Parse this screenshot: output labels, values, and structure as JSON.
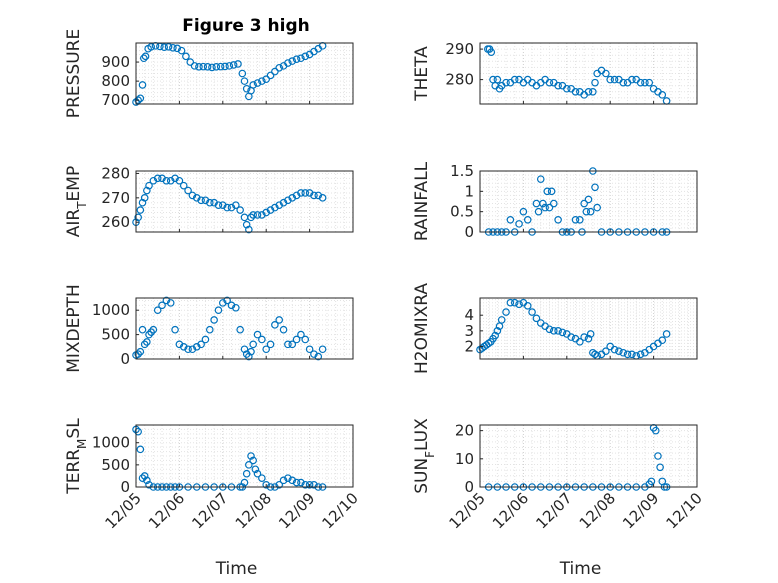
{
  "figure": {
    "title": "Figure 3 high",
    "marker_color": "#0072bd",
    "grid": "on (major dotted, minor dotted)",
    "xtick_labels": [
      "12/05",
      "12/06",
      "12/07",
      "12/08",
      "12/09",
      "12/10"
    ]
  },
  "chart_data": [
    {
      "type": "scatter",
      "ylabel": "PRESSURE",
      "xlabel": "",
      "title": "Figure 3 high",
      "xlim": [
        0,
        5
      ],
      "ylim": [
        680,
        1000
      ],
      "yticks": [
        700,
        800,
        900
      ],
      "x": [
        0.0,
        0.05,
        0.1,
        0.15,
        0.18,
        0.22,
        0.28,
        0.35,
        0.45,
        0.55,
        0.65,
        0.75,
        0.85,
        0.95,
        1.05,
        1.15,
        1.25,
        1.35,
        1.45,
        1.55,
        1.65,
        1.75,
        1.85,
        1.95,
        2.05,
        2.15,
        2.25,
        2.35,
        2.45,
        2.5,
        2.55,
        2.6,
        2.65,
        2.7,
        2.8,
        2.9,
        3.0,
        3.1,
        3.2,
        3.3,
        3.4,
        3.5,
        3.6,
        3.7,
        3.8,
        3.9,
        4.0,
        4.1,
        4.2,
        4.3
      ],
      "y": [
        690,
        700,
        710,
        780,
        920,
        930,
        970,
        980,
        985,
        982,
        978,
        980,
        975,
        972,
        960,
        930,
        900,
        880,
        875,
        876,
        875,
        872,
        875,
        876,
        877,
        880,
        885,
        890,
        840,
        800,
        760,
        720,
        750,
        780,
        790,
        800,
        810,
        830,
        850,
        870,
        880,
        895,
        905,
        915,
        920,
        930,
        940,
        955,
        970,
        985
      ]
    },
    {
      "type": "scatter",
      "ylabel": "THETA",
      "xlabel": "",
      "xlim": [
        0,
        5
      ],
      "ylim": [
        272,
        292
      ],
      "yticks": [
        280,
        290
      ],
      "x": [
        0.18,
        0.22,
        0.26,
        0.3,
        0.35,
        0.4,
        0.45,
        0.5,
        0.6,
        0.7,
        0.8,
        0.9,
        1.0,
        1.1,
        1.2,
        1.3,
        1.4,
        1.5,
        1.6,
        1.7,
        1.8,
        1.9,
        2.0,
        2.1,
        2.2,
        2.3,
        2.4,
        2.5,
        2.6,
        2.65,
        2.7,
        2.8,
        2.9,
        3.0,
        3.1,
        3.2,
        3.3,
        3.4,
        3.5,
        3.6,
        3.7,
        3.8,
        3.9,
        4.0,
        4.1,
        4.2,
        4.3
      ],
      "y": [
        290,
        290,
        289,
        280,
        278,
        280,
        277,
        278,
        279,
        279,
        280,
        280,
        279,
        280,
        279,
        278,
        279,
        280,
        279,
        279,
        278,
        278,
        277,
        277,
        276,
        276,
        275,
        276,
        276,
        279,
        282,
        283,
        282,
        280,
        280,
        280,
        279,
        279,
        280,
        280,
        279,
        279,
        279,
        277,
        276,
        275,
        273
      ]
    },
    {
      "type": "scatter",
      "ylabel": "AIR_TEMP",
      "xlabel": "",
      "xlim": [
        0,
        5
      ],
      "ylim": [
        256,
        281
      ],
      "yticks": [
        260,
        270,
        280
      ],
      "x": [
        0.0,
        0.05,
        0.1,
        0.15,
        0.2,
        0.25,
        0.3,
        0.4,
        0.5,
        0.6,
        0.7,
        0.8,
        0.9,
        1.0,
        1.1,
        1.2,
        1.3,
        1.4,
        1.5,
        1.6,
        1.7,
        1.8,
        1.9,
        2.0,
        2.1,
        2.2,
        2.3,
        2.4,
        2.5,
        2.55,
        2.6,
        2.65,
        2.7,
        2.8,
        2.9,
        3.0,
        3.1,
        3.2,
        3.3,
        3.4,
        3.5,
        3.6,
        3.7,
        3.8,
        3.9,
        4.0,
        4.1,
        4.2,
        4.3
      ],
      "y": [
        260,
        262,
        265,
        268,
        270,
        273,
        275,
        277,
        278,
        278,
        277,
        277,
        278,
        277,
        275,
        273,
        271,
        270,
        269,
        269,
        268,
        268,
        267,
        267,
        266,
        266,
        267,
        265,
        262,
        259,
        257,
        262,
        263,
        263,
        263,
        264,
        265,
        266,
        267,
        268,
        269,
        270,
        271,
        272,
        272,
        272,
        271,
        271,
        270
      ]
    },
    {
      "type": "scatter",
      "ylabel": "RAINFALL",
      "xlabel": "",
      "xlim": [
        0,
        5
      ],
      "ylim": [
        0,
        1.5
      ],
      "yticks": [
        0,
        0.5,
        1,
        1.5
      ],
      "x": [
        0.2,
        0.3,
        0.4,
        0.5,
        0.6,
        0.7,
        0.8,
        0.9,
        1.0,
        1.1,
        1.2,
        1.3,
        1.35,
        1.4,
        1.45,
        1.5,
        1.55,
        1.6,
        1.65,
        1.7,
        1.8,
        1.9,
        2.0,
        2.1,
        2.2,
        2.3,
        2.35,
        2.4,
        2.45,
        2.5,
        2.55,
        2.6,
        2.65,
        2.7,
        2.8,
        3.0,
        3.2,
        3.4,
        3.6,
        3.8,
        4.0,
        4.2,
        4.3
      ],
      "y": [
        0,
        0,
        0,
        0,
        0,
        0.3,
        0,
        0.2,
        0.5,
        0.3,
        0,
        0.7,
        0.5,
        1.3,
        0.7,
        0.6,
        1.0,
        0.6,
        1.0,
        0.7,
        0.3,
        0,
        0,
        0,
        0.3,
        0.3,
        0,
        0.7,
        0.5,
        0.8,
        0.5,
        1.5,
        1.1,
        0.6,
        0,
        0,
        0,
        0,
        0,
        0,
        0,
        0,
        0
      ]
    },
    {
      "type": "scatter",
      "ylabel": "MIXDEPTH",
      "xlabel": "",
      "xlim": [
        0,
        5
      ],
      "ylim": [
        0,
        1250
      ],
      "yticks": [
        0,
        500,
        1000
      ],
      "x": [
        0.0,
        0.05,
        0.1,
        0.15,
        0.2,
        0.25,
        0.3,
        0.35,
        0.4,
        0.5,
        0.6,
        0.7,
        0.8,
        0.9,
        1.0,
        1.1,
        1.2,
        1.3,
        1.4,
        1.5,
        1.6,
        1.7,
        1.8,
        1.9,
        2.0,
        2.1,
        2.2,
        2.3,
        2.4,
        2.5,
        2.55,
        2.6,
        2.65,
        2.7,
        2.8,
        2.9,
        3.0,
        3.1,
        3.2,
        3.3,
        3.4,
        3.5,
        3.6,
        3.7,
        3.8,
        3.9,
        4.0,
        4.1,
        4.2,
        4.3
      ],
      "y": [
        80,
        100,
        150,
        600,
        300,
        350,
        500,
        550,
        600,
        1000,
        1100,
        1200,
        1150,
        600,
        300,
        250,
        200,
        200,
        250,
        300,
        400,
        600,
        800,
        1000,
        1150,
        1200,
        1100,
        1050,
        600,
        200,
        100,
        50,
        150,
        300,
        500,
        400,
        200,
        300,
        700,
        800,
        600,
        300,
        300,
        400,
        500,
        400,
        200,
        100,
        50,
        200
      ]
    },
    {
      "type": "scatter",
      "ylabel": "H2OMIXRA",
      "xlabel": "",
      "xlim": [
        0,
        5
      ],
      "ylim": [
        1.2,
        5.1
      ],
      "yticks": [
        2,
        3,
        4
      ],
      "x": [
        0.0,
        0.05,
        0.1,
        0.15,
        0.2,
        0.25,
        0.3,
        0.35,
        0.4,
        0.45,
        0.5,
        0.6,
        0.7,
        0.8,
        0.9,
        1.0,
        1.1,
        1.2,
        1.3,
        1.4,
        1.5,
        1.6,
        1.7,
        1.8,
        1.9,
        2.0,
        2.1,
        2.2,
        2.3,
        2.4,
        2.5,
        2.55,
        2.6,
        2.65,
        2.7,
        2.8,
        2.9,
        3.0,
        3.1,
        3.2,
        3.3,
        3.4,
        3.5,
        3.6,
        3.7,
        3.8,
        3.9,
        4.0,
        4.1,
        4.2,
        4.3
      ],
      "y": [
        1.8,
        1.9,
        2.0,
        2.1,
        2.2,
        2.3,
        2.5,
        2.7,
        3.0,
        3.3,
        3.7,
        4.2,
        4.8,
        4.8,
        4.7,
        4.8,
        4.6,
        4.2,
        3.8,
        3.5,
        3.3,
        3.1,
        3.0,
        3.0,
        2.9,
        2.8,
        2.6,
        2.5,
        2.3,
        2.6,
        2.5,
        2.8,
        1.6,
        1.5,
        1.4,
        1.5,
        1.7,
        2.0,
        1.8,
        1.7,
        1.6,
        1.5,
        1.5,
        1.4,
        1.5,
        1.6,
        1.8,
        2.0,
        2.2,
        2.4,
        2.8
      ]
    },
    {
      "type": "scatter",
      "ylabel": "TERR_MSL",
      "xlabel": "Time",
      "xlim": [
        0,
        5
      ],
      "ylim": [
        0,
        1400
      ],
      "yticks": [
        0,
        500,
        1000
      ],
      "x": [
        0.0,
        0.05,
        0.1,
        0.15,
        0.2,
        0.25,
        0.3,
        0.4,
        0.5,
        0.6,
        0.7,
        0.8,
        0.9,
        1.0,
        1.2,
        1.4,
        1.6,
        1.8,
        2.0,
        2.2,
        2.4,
        2.45,
        2.5,
        2.55,
        2.6,
        2.65,
        2.7,
        2.75,
        2.8,
        2.9,
        3.0,
        3.1,
        3.2,
        3.3,
        3.4,
        3.5,
        3.6,
        3.7,
        3.8,
        3.9,
        4.0,
        4.1,
        4.2,
        4.3
      ],
      "y": [
        1300,
        1250,
        850,
        200,
        250,
        150,
        50,
        0,
        0,
        0,
        0,
        0,
        0,
        0,
        0,
        0,
        0,
        0,
        0,
        0,
        0,
        0,
        100,
        300,
        500,
        700,
        600,
        400,
        300,
        200,
        50,
        0,
        0,
        50,
        150,
        200,
        150,
        100,
        100,
        50,
        50,
        50,
        0,
        0
      ]
    },
    {
      "type": "scatter",
      "ylabel": "SUN_FLUX",
      "xlabel": "Time",
      "xlim": [
        0,
        5
      ],
      "ylim": [
        0,
        22
      ],
      "yticks": [
        0,
        10,
        20
      ],
      "x": [
        0.2,
        0.4,
        0.6,
        0.8,
        1.0,
        1.2,
        1.4,
        1.6,
        1.8,
        2.0,
        2.2,
        2.4,
        2.6,
        2.8,
        3.0,
        3.2,
        3.4,
        3.6,
        3.8,
        3.9,
        3.95,
        4.0,
        4.05,
        4.1,
        4.15,
        4.2,
        4.25,
        4.3
      ],
      "y": [
        0,
        0,
        0,
        0,
        0,
        0,
        0,
        0,
        0,
        0,
        0,
        0,
        0,
        0,
        0,
        0,
        0,
        0,
        0,
        1,
        2,
        21,
        20,
        11,
        7,
        2,
        0,
        0
      ]
    }
  ]
}
